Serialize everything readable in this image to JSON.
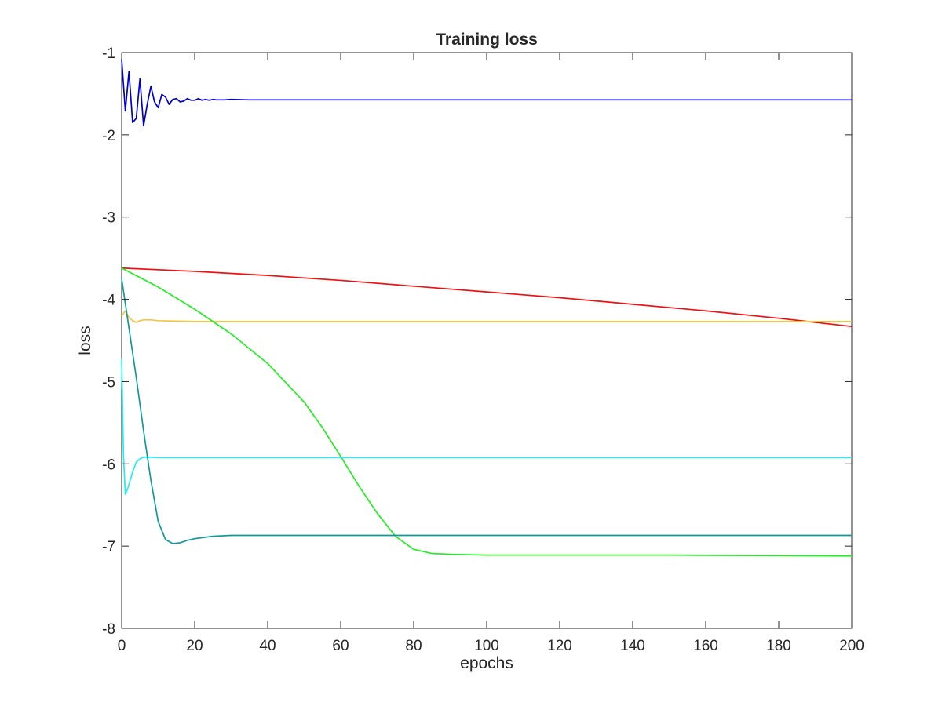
{
  "chart_data": {
    "type": "line",
    "title": "Training loss",
    "xlabel": "epochs",
    "ylabel": "loss",
    "xlim": [
      0,
      200
    ],
    "ylim": [
      -8,
      -1
    ],
    "xticks": [
      0,
      20,
      40,
      60,
      80,
      100,
      120,
      140,
      160,
      180,
      200
    ],
    "yticks": [
      -8,
      -7,
      -6,
      -5,
      -4,
      -3,
      -2,
      -1
    ],
    "xtick_labels": [
      "0",
      "20",
      "40",
      "60",
      "80",
      "100",
      "120",
      "140",
      "160",
      "180",
      "200"
    ],
    "ytick_labels": [
      "-8",
      "-7",
      "-6",
      "-5",
      "-4",
      "-3",
      "-2",
      "-1"
    ],
    "grid": false,
    "legend": "none",
    "series": [
      {
        "color": "#0000cc",
        "x": [
          0,
          1,
          2,
          3,
          4,
          5,
          6,
          7,
          8,
          9,
          10,
          11,
          12,
          13,
          14,
          15,
          16,
          17,
          18,
          19,
          20,
          21,
          22,
          23,
          24,
          25,
          26,
          28,
          30,
          35,
          40,
          60,
          100,
          150,
          200
        ],
        "y": [
          -1.08,
          -1.71,
          -1.23,
          -1.85,
          -1.8,
          -1.32,
          -1.89,
          -1.63,
          -1.41,
          -1.6,
          -1.67,
          -1.51,
          -1.54,
          -1.63,
          -1.57,
          -1.56,
          -1.6,
          -1.59,
          -1.56,
          -1.58,
          -1.58,
          -1.56,
          -1.58,
          -1.57,
          -1.58,
          -1.57,
          -1.575,
          -1.575,
          -1.57,
          -1.575,
          -1.575,
          -1.575,
          -1.575,
          -1.575,
          -1.575
        ]
      },
      {
        "color": "#ee1111",
        "x": [
          0,
          20,
          40,
          60,
          80,
          100,
          120,
          140,
          160,
          180,
          200
        ],
        "y": [
          -3.62,
          -3.66,
          -3.71,
          -3.77,
          -3.84,
          -3.91,
          -3.98,
          -4.06,
          -4.14,
          -4.23,
          -4.33
        ]
      },
      {
        "color": "#f5c542",
        "x": [
          0,
          1,
          2,
          3,
          4,
          5,
          6,
          8,
          10,
          15,
          20,
          40,
          100,
          150,
          200
        ],
        "y": [
          -4.2,
          -4.14,
          -4.22,
          -4.26,
          -4.28,
          -4.26,
          -4.25,
          -4.25,
          -4.26,
          -4.265,
          -4.27,
          -4.27,
          -4.27,
          -4.27,
          -4.27
        ]
      },
      {
        "color": "#22ee22",
        "x": [
          0,
          10,
          20,
          30,
          40,
          50,
          55,
          60,
          65,
          70,
          75,
          80,
          85,
          90,
          100,
          120,
          150,
          200
        ],
        "y": [
          -3.62,
          -3.85,
          -4.12,
          -4.42,
          -4.78,
          -5.25,
          -5.56,
          -5.91,
          -6.27,
          -6.6,
          -6.88,
          -7.04,
          -7.09,
          -7.1,
          -7.11,
          -7.11,
          -7.11,
          -7.12
        ]
      },
      {
        "color": "#22eeee",
        "x": [
          0,
          0.5,
          1,
          1.5,
          2,
          3,
          4,
          5,
          6,
          7,
          8,
          10,
          15,
          20,
          50,
          100,
          150,
          200
        ],
        "y": [
          -4.72,
          -5.9,
          -6.37,
          -6.32,
          -6.25,
          -6.1,
          -5.98,
          -5.94,
          -5.92,
          -5.92,
          -5.92,
          -5.925,
          -5.925,
          -5.925,
          -5.925,
          -5.925,
          -5.925,
          -5.925
        ]
      },
      {
        "color": "#119999",
        "x": [
          0,
          2,
          4,
          6,
          8,
          10,
          12,
          14,
          16,
          18,
          20,
          25,
          30,
          40,
          60,
          100,
          150,
          200
        ],
        "y": [
          -3.75,
          -4.35,
          -4.95,
          -5.6,
          -6.2,
          -6.7,
          -6.92,
          -6.97,
          -6.96,
          -6.93,
          -6.91,
          -6.88,
          -6.87,
          -6.87,
          -6.87,
          -6.87,
          -6.87,
          -6.87
        ]
      }
    ]
  }
}
